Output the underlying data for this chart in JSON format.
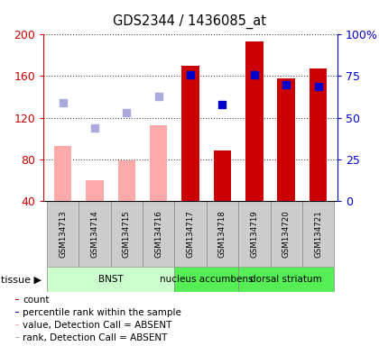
{
  "title": "GDS2344 / 1436085_at",
  "samples": [
    "GSM134713",
    "GSM134714",
    "GSM134715",
    "GSM134716",
    "GSM134717",
    "GSM134718",
    "GSM134719",
    "GSM134720",
    "GSM134721"
  ],
  "present_bar_values": [
    null,
    null,
    null,
    null,
    170,
    88,
    193,
    158,
    167
  ],
  "absent_bar_values": [
    93,
    60,
    79,
    113,
    null,
    null,
    null,
    null,
    null
  ],
  "present_rank_values": [
    null,
    null,
    null,
    null,
    76,
    58,
    76,
    70,
    69
  ],
  "absent_rank_values": [
    59,
    44,
    53,
    63,
    null,
    null,
    null,
    null,
    null
  ],
  "present_bar_color": "#cc0000",
  "absent_bar_color": "#ffaaaa",
  "present_rank_color": "#0000cc",
  "absent_rank_color": "#aaaadd",
  "base_value": 40,
  "ylim_left": [
    40,
    200
  ],
  "ylim_right": [
    0,
    100
  ],
  "yticks_left": [
    40,
    80,
    120,
    160,
    200
  ],
  "yticks_right": [
    0,
    25,
    50,
    75,
    100
  ],
  "yticklabels_right": [
    "0",
    "25",
    "50",
    "75",
    "100%"
  ],
  "tissue_groups": [
    {
      "label": "BNST",
      "start": 0,
      "end": 3,
      "color": "#ccffcc"
    },
    {
      "label": "nucleus accumbens",
      "start": 4,
      "end": 5,
      "color": "#55ee55"
    },
    {
      "label": "dorsal striatum",
      "start": 6,
      "end": 8,
      "color": "#55ee55"
    }
  ],
  "legend_items": [
    {
      "label": "count",
      "color": "#cc0000"
    },
    {
      "label": "percentile rank within the sample",
      "color": "#0000cc"
    },
    {
      "label": "value, Detection Call = ABSENT",
      "color": "#ffaaaa"
    },
    {
      "label": "rank, Detection Call = ABSENT",
      "color": "#aaaadd"
    }
  ],
  "bar_width": 0.55,
  "rank_marker_size": 40,
  "left_axis_color": "#cc0000",
  "right_axis_color": "#0000cc",
  "sample_bg_color": "#cccccc",
  "tissue_label": "tissue"
}
